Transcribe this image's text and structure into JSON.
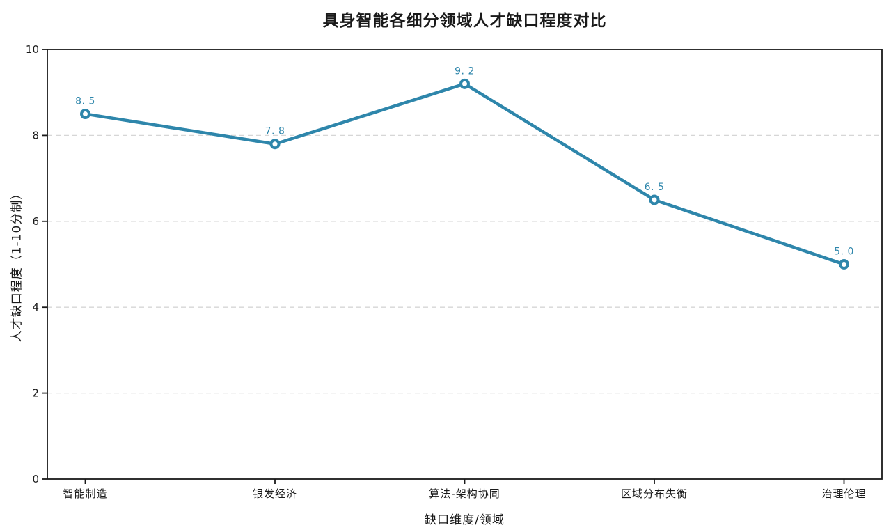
{
  "chart_data": {
    "type": "line",
    "title": "具身智能各细分领域人才缺口程度对比",
    "xlabel": "缺口维度/领域",
    "ylabel": "人才缺口程度（1-10分制）",
    "categories": [
      "智能制造",
      "银发经济",
      "算法-架构协同",
      "区域分布失衡",
      "治理伦理"
    ],
    "values": [
      8.5,
      7.8,
      9.2,
      6.5,
      5.0
    ],
    "point_labels": [
      "8. 5",
      "7. 8",
      "9. 2",
      "6. 5",
      "5. 0"
    ],
    "ylim": [
      0,
      10
    ],
    "yticks": [
      0,
      2,
      4,
      6,
      8,
      10
    ],
    "grid": "horizontal-dashed",
    "legend": "none",
    "colors": {
      "line": "#2E86AB",
      "marker_fill": "#ffffff",
      "marker_ring": "#2E86AB",
      "point_label": "#2E86AB",
      "grid": "#d6d6d6",
      "frame": "#1a1a1a",
      "text": "#1a1a1a",
      "background": "#ffffff"
    }
  }
}
